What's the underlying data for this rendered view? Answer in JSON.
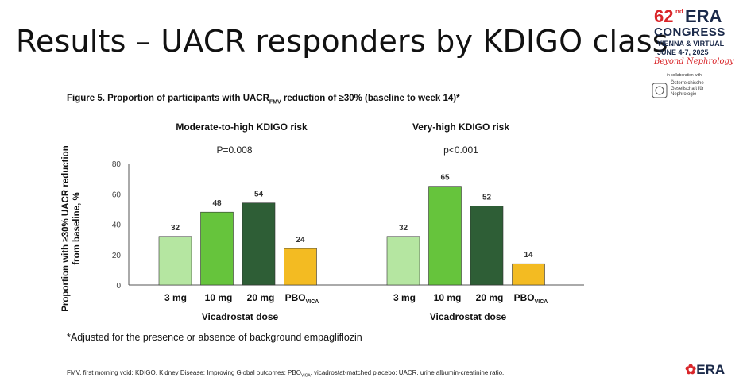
{
  "slide": {
    "title": "Results – UACR responders by KDIGO class",
    "figure_caption_prefix": "Figure 5. Proportion of participants with UACR",
    "figure_caption_sub": "FMV",
    "figure_caption_suffix": " reduction of ≥30% (baseline to week 14)*",
    "footnote": "*Adjusted for the presence or absence of background empagliflozin",
    "abbrev_a": "FMV, first morning void; KDIGO, Kidney Disease: Improving Global outcomes; PBO",
    "abbrev_sub": "VICA",
    "abbrev_b": ", vicadrostat-matched placebo; UACR, urine albumin-creatinine ratio."
  },
  "logo": {
    "number": "62",
    "ordinal": "nd",
    "org": "ERA",
    "event": "CONGRESS",
    "location": "VIENNA & VIRTUAL",
    "dates": "JUNE 4-7, 2025",
    "tagline": "Beyond Nephrology",
    "collab": "in collaboration with",
    "partner": "Österreichische Gesellschaft für Nephrologie",
    "partner_mark": "Ö G N",
    "footer_org": "ERA"
  },
  "colors": {
    "bar_3mg": "#b5e6a1",
    "bar_10mg": "#66c43c",
    "bar_20mg": "#2e5e36",
    "bar_pbo": "#f3bb22",
    "accent_red": "#d9262a",
    "navy": "#1b2a4a"
  },
  "chart_data": [
    {
      "type": "bar",
      "title": "Moderate-to-high KDIGO risk",
      "annotation": "P=0.008",
      "categories": [
        "3 mg",
        "10 mg",
        "20 mg",
        "PBO"
      ],
      "category_subscripts": [
        "",
        "",
        "",
        "VICA"
      ],
      "values": [
        32,
        48,
        54,
        24
      ],
      "xlabel": "Vicadrostat dose",
      "ylabel": "Proportion with ≥30% UACR reduction from baseline, %",
      "ylim": [
        0,
        80
      ],
      "yticks": [
        0,
        20,
        40,
        60,
        80
      ],
      "grid": false
    },
    {
      "type": "bar",
      "title": "Very-high KDIGO risk",
      "annotation": "p<0.001",
      "categories": [
        "3 mg",
        "10 mg",
        "20 mg",
        "PBO"
      ],
      "category_subscripts": [
        "",
        "",
        "",
        "VICA"
      ],
      "values": [
        32,
        65,
        52,
        14
      ],
      "xlabel": "Vicadrostat dose",
      "ylim": [
        0,
        80
      ],
      "grid": false
    }
  ]
}
